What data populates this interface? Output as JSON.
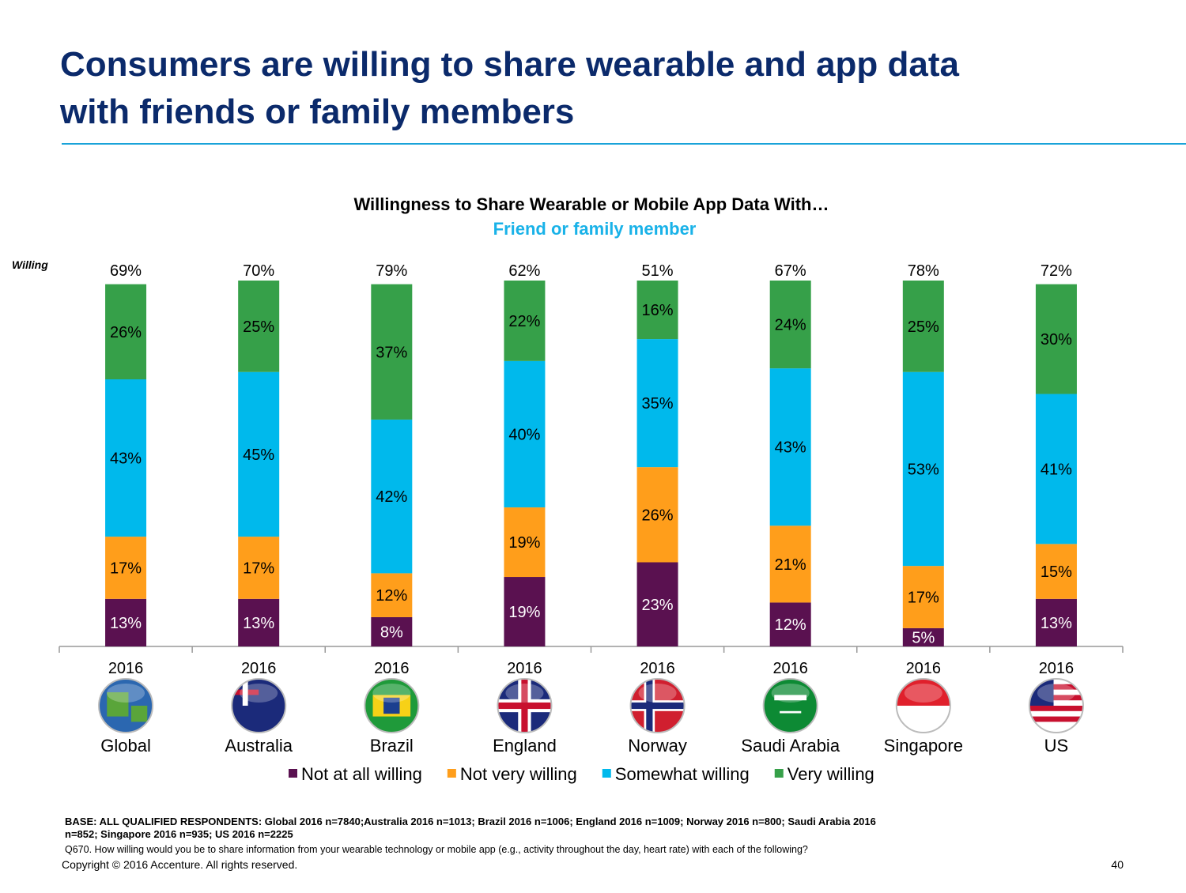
{
  "header": {
    "title_lines": [
      "Consumers are willing to share wearable and app data",
      "with friends or family members"
    ]
  },
  "chart_data": {
    "type": "bar",
    "stacked": true,
    "title": "Willingness to Share Wearable or Mobile App Data With…",
    "subtitle": "Friend or family member",
    "categories": [
      "Global",
      "Australia",
      "Brazil",
      "England",
      "Norway",
      "Saudi Arabia",
      "Singapore",
      "US"
    ],
    "years": [
      "2016",
      "2016",
      "2016",
      "2016",
      "2016",
      "2016",
      "2016",
      "2016"
    ],
    "series": [
      {
        "name": "Not at all willing",
        "color": "#5a1150",
        "values": [
          13,
          13,
          8,
          19,
          23,
          12,
          5,
          13
        ],
        "value_labels": [
          "13%",
          "13%",
          "8%",
          "19%",
          "23%",
          "12%",
          "5%",
          "13%"
        ]
      },
      {
        "name": "Not very willing",
        "color": "#ff9e1b",
        "values": [
          17,
          17,
          12,
          19,
          26,
          21,
          17,
          15
        ],
        "value_labels": [
          "17%",
          "17%",
          "12%",
          "19%",
          "26%",
          "21%",
          "17%",
          "15%"
        ]
      },
      {
        "name": "Somewhat willing",
        "color": "#00b9ec",
        "values": [
          43,
          45,
          42,
          40,
          35,
          43,
          53,
          41
        ],
        "value_labels": [
          "43%",
          "45%",
          "42%",
          "40%",
          "35%",
          "43%",
          "53%",
          "41%"
        ]
      },
      {
        "name": "Very willing",
        "color": "#36a049",
        "values": [
          26,
          25,
          37,
          22,
          16,
          24,
          25,
          30
        ],
        "value_labels": [
          "26%",
          "25%",
          "37%",
          "22%",
          "16%",
          "24%",
          "25%",
          "30%"
        ]
      }
    ],
    "willing": {
      "label": "Willing",
      "values": [
        69,
        70,
        79,
        62,
        51,
        67,
        78,
        72
      ],
      "value_labels": [
        "69%",
        "70%",
        "79%",
        "62%",
        "51%",
        "67%",
        "78%",
        "72%"
      ]
    },
    "legend": "bottom"
  },
  "footer": {
    "base_lines": [
      "BASE: ALL QUALIFIED RESPONDENTS: Global 2016 n=7840;Australia 2016 n=1013; Brazil  2016 n=1006; England  2016 n=1009; Norway  2016 n=800; Saudi Arabia 2016",
      "n=852; Singapore  2016 n=935; US 2016 n=2225"
    ],
    "question": "Q670.  How willing would you be to share information from your wearable technology or mobile app (e.g., activity throughout the day, heart rate) with each of the following?",
    "copyright": "Copyright © 2016 Accenture. All rights reserved.",
    "page_number": "40"
  }
}
